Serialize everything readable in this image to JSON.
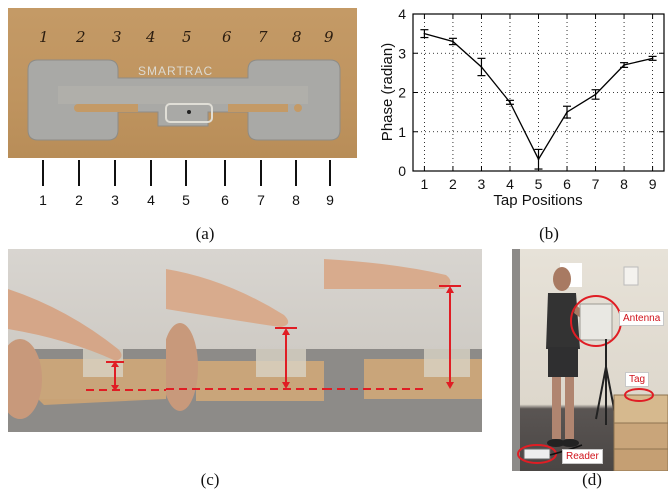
{
  "panels": {
    "a": {
      "caption": "(a)",
      "logo_text": "SMARTRAC",
      "handwritten_positions": [
        "1",
        "2",
        "3",
        "4",
        "5",
        "6",
        "7",
        "8",
        "9"
      ],
      "tick_positions": [
        "1",
        "2",
        "3",
        "4",
        "5",
        "6",
        "7",
        "8",
        "9"
      ]
    },
    "b": {
      "caption": "(b)"
    },
    "c": {
      "caption": "(c)"
    },
    "d": {
      "caption": "(d)",
      "labels": {
        "antenna": "Antenna",
        "tag": "Tag",
        "reader": "Reader"
      }
    }
  },
  "chart_data": {
    "type": "line",
    "xlabel": "Tap Positions",
    "ylabel": "Phase (radian)",
    "x": [
      1,
      2,
      3,
      4,
      5,
      6,
      7,
      8,
      9
    ],
    "y": [
      3.5,
      3.3,
      2.65,
      1.75,
      0.3,
      1.5,
      1.95,
      2.7,
      2.87
    ],
    "err": [
      0.1,
      0.08,
      0.22,
      0.05,
      0.25,
      0.15,
      0.12,
      0.06,
      0.05
    ],
    "xlim": [
      0.6,
      9.4
    ],
    "ylim": [
      0,
      4
    ],
    "xticks": [
      "1",
      "2",
      "3",
      "4",
      "5",
      "6",
      "7",
      "8",
      "9"
    ],
    "yticks": [
      "0",
      "1",
      "2",
      "3",
      "4"
    ],
    "grid": true,
    "colors": {
      "line": "#000000",
      "grid": "#000000"
    }
  }
}
